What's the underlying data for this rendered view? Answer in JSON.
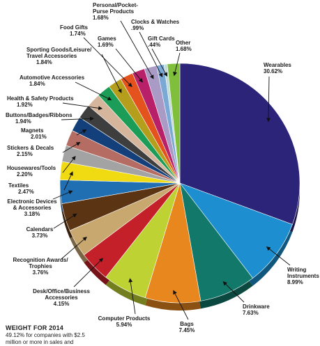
{
  "chart_data": {
    "type": "pie",
    "slices": [
      {
        "label": "Wearables",
        "value": 30.62,
        "value_label": "30.62%",
        "color": "#2b2479"
      },
      {
        "label": "Writing Instruments",
        "value": 8.99,
        "value_label": "8.99%",
        "color": "#1d8fd0"
      },
      {
        "label": "Drinkware",
        "value": 7.63,
        "value_label": "7.63%",
        "color": "#11786a"
      },
      {
        "label": "Bags",
        "value": 7.45,
        "value_label": "7.45%",
        "color": "#e8871e"
      },
      {
        "label": "Computer Products",
        "value": 5.94,
        "value_label": "5.94%",
        "color": "#bfd234"
      },
      {
        "label": "Desk/Office/Business Accessories",
        "value": 4.15,
        "value_label": "4.15%",
        "color": "#c4202a"
      },
      {
        "label": "Recognition Awards/ Trophies",
        "value": 3.76,
        "value_label": "3.76%",
        "color": "#c9a870"
      },
      {
        "label": "Calendars",
        "value": 3.73,
        "value_label": "3.73%",
        "color": "#5b3414"
      },
      {
        "label": "Electronic Devices & Accessories",
        "value": 3.18,
        "value_label": "3.18%",
        "color": "#1f6fb2"
      },
      {
        "label": "Textiles",
        "value": 2.47,
        "value_label": "2.47%",
        "color": "#f0da12"
      },
      {
        "label": "Housewares/Tools",
        "value": 2.2,
        "value_label": "2.20%",
        "color": "#a3a3a3"
      },
      {
        "label": "Stickers & Decals",
        "value": 2.15,
        "value_label": "2.15%",
        "color": "#b56d63"
      },
      {
        "label": "Magnets",
        "value": 2.01,
        "value_label": "2.01%",
        "color": "#13407b"
      },
      {
        "label": "Buttons/Badges/Ribbons",
        "value": 1.94,
        "value_label": "1.94%",
        "color": "#3e3e3e"
      },
      {
        "label": "Health & Safety Products",
        "value": 1.92,
        "value_label": "1.92%",
        "color": "#d6b59d"
      },
      {
        "label": "Automotive Accessories",
        "value": 1.84,
        "value_label": "1.84%",
        "color": "#1b9c57"
      },
      {
        "label": "Sporting Goods/Leisure/ Travel Accessories",
        "value": 1.84,
        "value_label": "1.84%",
        "color": "#b59e1c"
      },
      {
        "label": "Food Gifts",
        "value": 1.74,
        "value_label": "1.74%",
        "color": "#e4521d"
      },
      {
        "label": "Games",
        "value": 1.69,
        "value_label": "1.69%",
        "color": "#b8206a"
      },
      {
        "label": "Personal/Pocket- Purse Products",
        "value": 1.68,
        "value_label": "1.68%",
        "color": "#a99ac6"
      },
      {
        "label": "Clocks & Watches",
        "value": 0.99,
        "value_label": ".99%",
        "color": "#7ba9d6"
      },
      {
        "label": "Gift Cards",
        "value": 0.44,
        "value_label": ".44%",
        "color": "#bfdcd6"
      },
      {
        "label": "Other",
        "value": 1.68,
        "value_label": "1.68%",
        "color": "#7fbf3c"
      }
    ]
  },
  "footer": {
    "title": "WEIGHT FOR 2014",
    "line1": "49.12% for companies with $2.5",
    "line2": "million or more in sales and"
  }
}
